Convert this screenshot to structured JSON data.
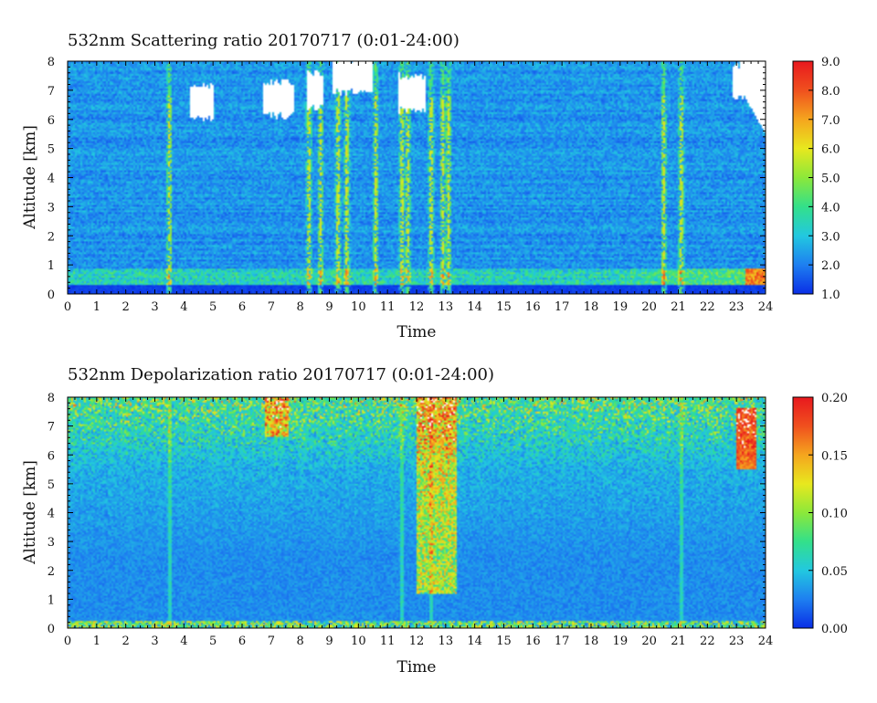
{
  "chart_data": [
    {
      "type": "heatmap",
      "title": "532nm Scattering ratio  20170717 (0:01-24:00)",
      "xlabel": "Time",
      "ylabel": "Altitude [km]",
      "xlim": [
        0,
        24
      ],
      "ylim": [
        0,
        8
      ],
      "x_ticks": [
        "0",
        "1",
        "2",
        "3",
        "4",
        "5",
        "6",
        "7",
        "8",
        "9",
        "10",
        "11",
        "12",
        "13",
        "14",
        "15",
        "16",
        "17",
        "18",
        "19",
        "20",
        "21",
        "22",
        "23",
        "24"
      ],
      "y_ticks": [
        "0",
        "1",
        "2",
        "3",
        "4",
        "5",
        "6",
        "7",
        "8"
      ],
      "colorbar": {
        "range": [
          1.0,
          9.0
        ],
        "ticks": [
          "1.0",
          "2.0",
          "3.0",
          "4.0",
          "5.0",
          "6.0",
          "7.0",
          "8.0",
          "9.0"
        ],
        "colors": [
          "#0a2ee6",
          "#1e7ff0",
          "#22c8e0",
          "#33e08a",
          "#8ce83a",
          "#e8e81e",
          "#f5a51e",
          "#f0501e",
          "#e8181e"
        ]
      },
      "features": {
        "background_value": 2.3,
        "boundary_layer_top_km": 0.9,
        "cloud_layers": [
          {
            "t_start": 4.2,
            "t_end": 5.0,
            "alt_km": 6.6
          },
          {
            "t_start": 6.7,
            "t_end": 7.8,
            "alt_km": 6.7
          },
          {
            "t_start": 8.2,
            "t_end": 8.8,
            "alt_km": 7.0
          },
          {
            "t_start": 9.1,
            "t_end": 10.5,
            "alt_km": 7.5
          },
          {
            "t_start": 11.4,
            "t_end": 12.3,
            "alt_km": 6.9
          },
          {
            "t_start": 22.9,
            "t_end": 24.0,
            "alt_km": 7.3
          }
        ],
        "precip_columns_t": [
          3.5,
          8.3,
          8.7,
          9.3,
          9.6,
          10.6,
          11.5,
          11.7,
          12.5,
          12.9,
          13.1,
          20.5,
          21.1
        ]
      }
    },
    {
      "type": "heatmap",
      "title": "532nm Depolarization ratio  20170717 (0:01-24:00)",
      "xlabel": "Time",
      "ylabel": "Altitude [km]",
      "xlim": [
        0,
        24
      ],
      "ylim": [
        0,
        8
      ],
      "x_ticks": [
        "0",
        "1",
        "2",
        "3",
        "4",
        "5",
        "6",
        "7",
        "8",
        "9",
        "10",
        "11",
        "12",
        "13",
        "14",
        "15",
        "16",
        "17",
        "18",
        "19",
        "20",
        "21",
        "22",
        "23",
        "24"
      ],
      "y_ticks": [
        "0",
        "1",
        "2",
        "3",
        "4",
        "5",
        "6",
        "7",
        "8"
      ],
      "colorbar": {
        "range": [
          0.0,
          0.2
        ],
        "ticks": [
          "0.00",
          "0.05",
          "0.10",
          "0.15",
          "0.20"
        ],
        "colors": [
          "#0a2ee6",
          "#1e7ff0",
          "#22c8e0",
          "#33e08a",
          "#8ce83a",
          "#e8e81e",
          "#f5a51e",
          "#f0501e",
          "#e8181e"
        ]
      },
      "features": {
        "background_value": 0.03,
        "noisy_upper_layer_km": [
          5.5,
          8.0
        ],
        "high_depol_columns": [
          {
            "t_start": 6.8,
            "t_end": 7.6,
            "alt_km_bottom": 6.6
          },
          {
            "t_start": 12.0,
            "t_end": 13.4,
            "alt_km_bottom": 1.2
          }
        ]
      }
    }
  ]
}
